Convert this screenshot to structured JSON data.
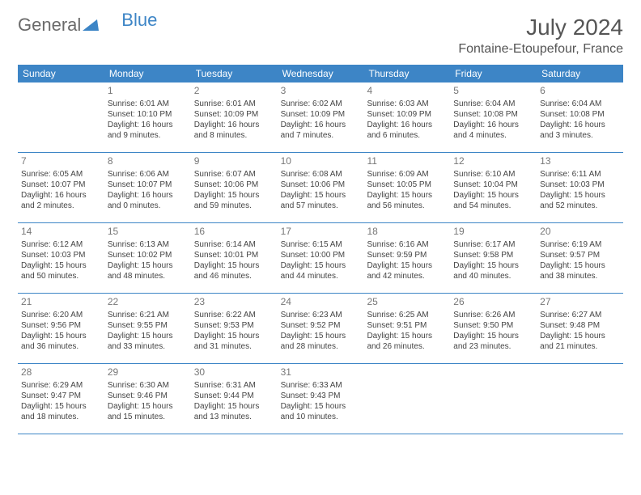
{
  "brand": {
    "part1": "General",
    "part2": "Blue"
  },
  "title": "July 2024",
  "location": "Fontaine-Etoupefour, France",
  "colors": {
    "header_bg": "#3d85c6",
    "header_text": "#ffffff",
    "border": "#3d85c6",
    "body_text": "#444444",
    "title_text": "#555555",
    "daynum_text": "#777777",
    "logo_gray": "#6a6a6a",
    "logo_blue": "#3d85c6",
    "background": "#ffffff"
  },
  "typography": {
    "title_fontsize": 28,
    "location_fontsize": 16,
    "dayhead_fontsize": 12,
    "daynum_fontsize": 12,
    "cell_fontsize": 10,
    "logo_fontsize": 22
  },
  "day_headers": [
    "Sunday",
    "Monday",
    "Tuesday",
    "Wednesday",
    "Thursday",
    "Friday",
    "Saturday"
  ],
  "weeks": [
    [
      {
        "num": "",
        "sunrise": "",
        "sunset": "",
        "daylight1": "",
        "daylight2": ""
      },
      {
        "num": "1",
        "sunrise": "Sunrise: 6:01 AM",
        "sunset": "Sunset: 10:10 PM",
        "daylight1": "Daylight: 16 hours",
        "daylight2": "and 9 minutes."
      },
      {
        "num": "2",
        "sunrise": "Sunrise: 6:01 AM",
        "sunset": "Sunset: 10:09 PM",
        "daylight1": "Daylight: 16 hours",
        "daylight2": "and 8 minutes."
      },
      {
        "num": "3",
        "sunrise": "Sunrise: 6:02 AM",
        "sunset": "Sunset: 10:09 PM",
        "daylight1": "Daylight: 16 hours",
        "daylight2": "and 7 minutes."
      },
      {
        "num": "4",
        "sunrise": "Sunrise: 6:03 AM",
        "sunset": "Sunset: 10:09 PM",
        "daylight1": "Daylight: 16 hours",
        "daylight2": "and 6 minutes."
      },
      {
        "num": "5",
        "sunrise": "Sunrise: 6:04 AM",
        "sunset": "Sunset: 10:08 PM",
        "daylight1": "Daylight: 16 hours",
        "daylight2": "and 4 minutes."
      },
      {
        "num": "6",
        "sunrise": "Sunrise: 6:04 AM",
        "sunset": "Sunset: 10:08 PM",
        "daylight1": "Daylight: 16 hours",
        "daylight2": "and 3 minutes."
      }
    ],
    [
      {
        "num": "7",
        "sunrise": "Sunrise: 6:05 AM",
        "sunset": "Sunset: 10:07 PM",
        "daylight1": "Daylight: 16 hours",
        "daylight2": "and 2 minutes."
      },
      {
        "num": "8",
        "sunrise": "Sunrise: 6:06 AM",
        "sunset": "Sunset: 10:07 PM",
        "daylight1": "Daylight: 16 hours",
        "daylight2": "and 0 minutes."
      },
      {
        "num": "9",
        "sunrise": "Sunrise: 6:07 AM",
        "sunset": "Sunset: 10:06 PM",
        "daylight1": "Daylight: 15 hours",
        "daylight2": "and 59 minutes."
      },
      {
        "num": "10",
        "sunrise": "Sunrise: 6:08 AM",
        "sunset": "Sunset: 10:06 PM",
        "daylight1": "Daylight: 15 hours",
        "daylight2": "and 57 minutes."
      },
      {
        "num": "11",
        "sunrise": "Sunrise: 6:09 AM",
        "sunset": "Sunset: 10:05 PM",
        "daylight1": "Daylight: 15 hours",
        "daylight2": "and 56 minutes."
      },
      {
        "num": "12",
        "sunrise": "Sunrise: 6:10 AM",
        "sunset": "Sunset: 10:04 PM",
        "daylight1": "Daylight: 15 hours",
        "daylight2": "and 54 minutes."
      },
      {
        "num": "13",
        "sunrise": "Sunrise: 6:11 AM",
        "sunset": "Sunset: 10:03 PM",
        "daylight1": "Daylight: 15 hours",
        "daylight2": "and 52 minutes."
      }
    ],
    [
      {
        "num": "14",
        "sunrise": "Sunrise: 6:12 AM",
        "sunset": "Sunset: 10:03 PM",
        "daylight1": "Daylight: 15 hours",
        "daylight2": "and 50 minutes."
      },
      {
        "num": "15",
        "sunrise": "Sunrise: 6:13 AM",
        "sunset": "Sunset: 10:02 PM",
        "daylight1": "Daylight: 15 hours",
        "daylight2": "and 48 minutes."
      },
      {
        "num": "16",
        "sunrise": "Sunrise: 6:14 AM",
        "sunset": "Sunset: 10:01 PM",
        "daylight1": "Daylight: 15 hours",
        "daylight2": "and 46 minutes."
      },
      {
        "num": "17",
        "sunrise": "Sunrise: 6:15 AM",
        "sunset": "Sunset: 10:00 PM",
        "daylight1": "Daylight: 15 hours",
        "daylight2": "and 44 minutes."
      },
      {
        "num": "18",
        "sunrise": "Sunrise: 6:16 AM",
        "sunset": "Sunset: 9:59 PM",
        "daylight1": "Daylight: 15 hours",
        "daylight2": "and 42 minutes."
      },
      {
        "num": "19",
        "sunrise": "Sunrise: 6:17 AM",
        "sunset": "Sunset: 9:58 PM",
        "daylight1": "Daylight: 15 hours",
        "daylight2": "and 40 minutes."
      },
      {
        "num": "20",
        "sunrise": "Sunrise: 6:19 AM",
        "sunset": "Sunset: 9:57 PM",
        "daylight1": "Daylight: 15 hours",
        "daylight2": "and 38 minutes."
      }
    ],
    [
      {
        "num": "21",
        "sunrise": "Sunrise: 6:20 AM",
        "sunset": "Sunset: 9:56 PM",
        "daylight1": "Daylight: 15 hours",
        "daylight2": "and 36 minutes."
      },
      {
        "num": "22",
        "sunrise": "Sunrise: 6:21 AM",
        "sunset": "Sunset: 9:55 PM",
        "daylight1": "Daylight: 15 hours",
        "daylight2": "and 33 minutes."
      },
      {
        "num": "23",
        "sunrise": "Sunrise: 6:22 AM",
        "sunset": "Sunset: 9:53 PM",
        "daylight1": "Daylight: 15 hours",
        "daylight2": "and 31 minutes."
      },
      {
        "num": "24",
        "sunrise": "Sunrise: 6:23 AM",
        "sunset": "Sunset: 9:52 PM",
        "daylight1": "Daylight: 15 hours",
        "daylight2": "and 28 minutes."
      },
      {
        "num": "25",
        "sunrise": "Sunrise: 6:25 AM",
        "sunset": "Sunset: 9:51 PM",
        "daylight1": "Daylight: 15 hours",
        "daylight2": "and 26 minutes."
      },
      {
        "num": "26",
        "sunrise": "Sunrise: 6:26 AM",
        "sunset": "Sunset: 9:50 PM",
        "daylight1": "Daylight: 15 hours",
        "daylight2": "and 23 minutes."
      },
      {
        "num": "27",
        "sunrise": "Sunrise: 6:27 AM",
        "sunset": "Sunset: 9:48 PM",
        "daylight1": "Daylight: 15 hours",
        "daylight2": "and 21 minutes."
      }
    ],
    [
      {
        "num": "28",
        "sunrise": "Sunrise: 6:29 AM",
        "sunset": "Sunset: 9:47 PM",
        "daylight1": "Daylight: 15 hours",
        "daylight2": "and 18 minutes."
      },
      {
        "num": "29",
        "sunrise": "Sunrise: 6:30 AM",
        "sunset": "Sunset: 9:46 PM",
        "daylight1": "Daylight: 15 hours",
        "daylight2": "and 15 minutes."
      },
      {
        "num": "30",
        "sunrise": "Sunrise: 6:31 AM",
        "sunset": "Sunset: 9:44 PM",
        "daylight1": "Daylight: 15 hours",
        "daylight2": "and 13 minutes."
      },
      {
        "num": "31",
        "sunrise": "Sunrise: 6:33 AM",
        "sunset": "Sunset: 9:43 PM",
        "daylight1": "Daylight: 15 hours",
        "daylight2": "and 10 minutes."
      },
      {
        "num": "",
        "sunrise": "",
        "sunset": "",
        "daylight1": "",
        "daylight2": ""
      },
      {
        "num": "",
        "sunrise": "",
        "sunset": "",
        "daylight1": "",
        "daylight2": ""
      },
      {
        "num": "",
        "sunrise": "",
        "sunset": "",
        "daylight1": "",
        "daylight2": ""
      }
    ]
  ]
}
